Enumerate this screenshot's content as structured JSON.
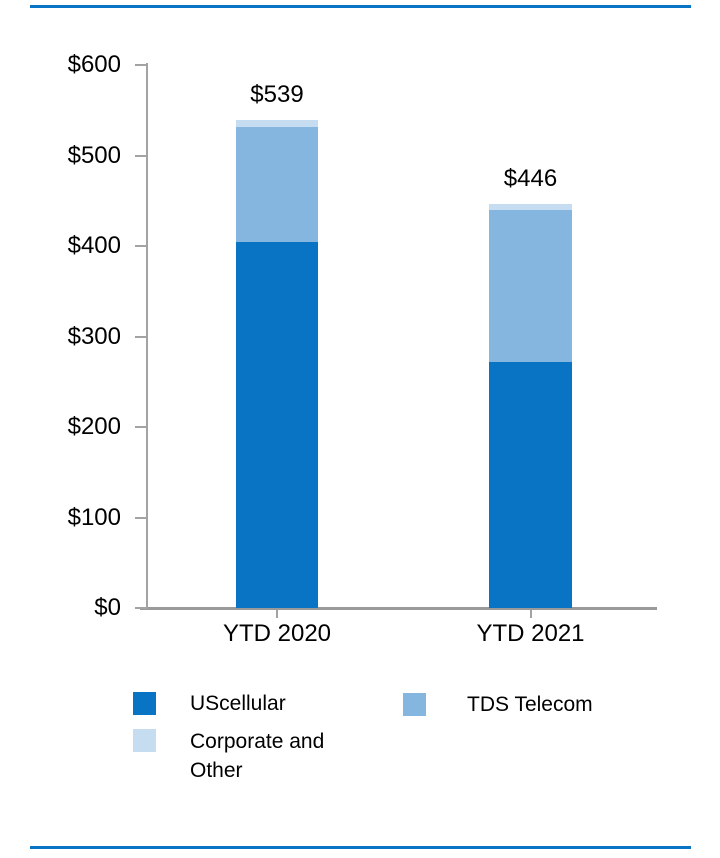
{
  "page": {
    "rule_color": "#0a74c4",
    "background": "#ffffff",
    "axis_color": "#a3a3a3"
  },
  "chart_data": {
    "type": "bar",
    "subtype": "stacked-vertical",
    "categories": [
      "YTD 2020",
      "YTD 2021"
    ],
    "series": [
      {
        "name": "UScellular",
        "color": "#0a74c4",
        "values": [
          404,
          272
        ]
      },
      {
        "name": "TDS Telecom",
        "color": "#84b6e0",
        "values": [
          127,
          168
        ]
      },
      {
        "name": "Corporate and Other",
        "color": "#c6dcf0",
        "values": [
          8,
          6
        ]
      }
    ],
    "totals": [
      539,
      446
    ],
    "total_labels": [
      "$539",
      "$446"
    ],
    "ylim": [
      0,
      600
    ],
    "yticks": [
      {
        "label": "$600",
        "value": 600
      },
      {
        "label": "$500",
        "value": 500
      },
      {
        "label": "$400",
        "value": 400
      },
      {
        "label": "$300",
        "value": 300
      },
      {
        "label": "$200",
        "value": 200
      },
      {
        "label": "$100",
        "value": 100
      },
      {
        "label": "$0",
        "value": 0
      }
    ],
    "grid": "off",
    "legend_position": "bottom"
  },
  "legend": {
    "items": [
      {
        "label": "UScellular",
        "color": "#0a74c4"
      },
      {
        "label": "TDS Telecom",
        "color": "#84b6e0"
      },
      {
        "label": "Corporate and Other",
        "color": "#c6dcf0"
      }
    ]
  }
}
